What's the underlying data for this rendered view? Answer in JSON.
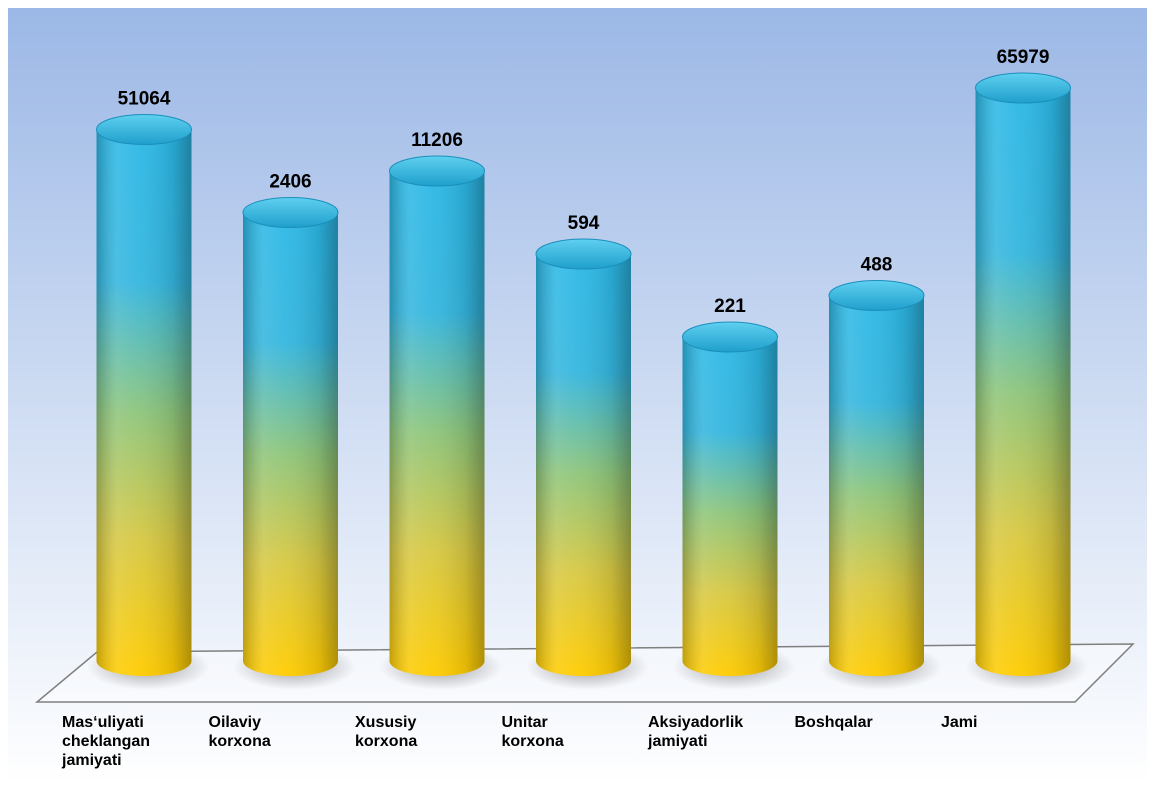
{
  "chart_data": {
    "type": "bar",
    "categories": [
      "Mas‘uliyati cheklangan jamiyati",
      "Oilaviy korxona",
      "Xususiy korxona",
      "Unitar korxona",
      "Aksiyadorlik jamiyati",
      "Boshqalar",
      "Jami"
    ],
    "category_lines": [
      [
        "Mas‘uliyati",
        "cheklangan",
        "jamiyati"
      ],
      [
        "Oilaviy",
        "korxona"
      ],
      [
        "Xususiy",
        "korxona"
      ],
      [
        "Unitar",
        "korxona"
      ],
      [
        "Aksiyadorlik",
        "jamiyati"
      ],
      [
        "Boshqalar"
      ],
      [
        "Jami"
      ]
    ],
    "values": [
      51064,
      2406,
      11206,
      594,
      221,
      488,
      65979
    ],
    "value_labels": [
      "51064",
      "2406",
      "11206",
      "594",
      "221",
      "488",
      "65979"
    ],
    "title": "",
    "xlabel": "",
    "ylabel": "",
    "grid": false,
    "legend": "none",
    "colors": {
      "bar_top": "#2bb8e6",
      "bar_mid": "#8ec57a",
      "bar_bottom": "#ffcc00",
      "background_top": "#9cb8e6",
      "background_bottom": "#ffffff",
      "floor_line": "#7f7f7f"
    }
  }
}
